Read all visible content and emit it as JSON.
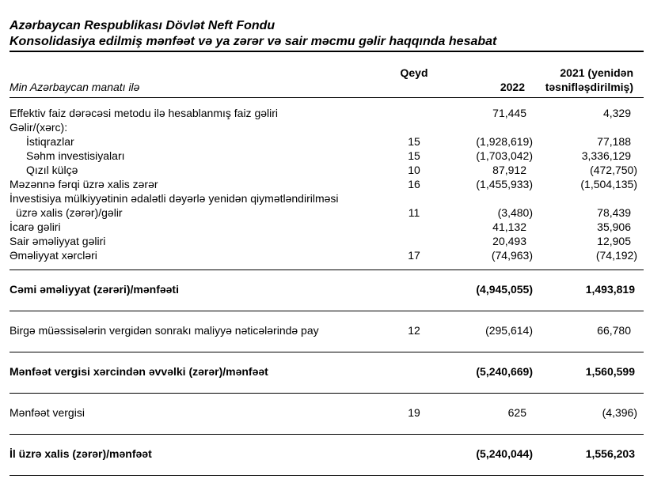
{
  "document": {
    "title_line1": "Azərbaycan Respublikası Dövlət Neft Fondu",
    "title_line2": "Konsolidasiya edilmiş mənfəət və ya zərər və sair məcmu gəlir haqqında hesabat"
  },
  "table": {
    "columns": {
      "unit_label": "Min Azərbaycan manatı ilə",
      "note": "Qeyd",
      "year_current": "2022",
      "year_prior_line1": "2021 (yenidən",
      "year_prior_line2": "təsnifləşdirilmiş)"
    },
    "rows": [
      {
        "label": "Effektiv faiz dərəcəsi metodu ilə hesablanmış faiz gəliri",
        "qeyd": "",
        "v2022": "71,445",
        "v2021": "4,329"
      },
      {
        "label": "Gəlir/(xərc):",
        "qeyd": "",
        "v2022": "",
        "v2021": ""
      },
      {
        "label": "İstiqrazlar",
        "indent": true,
        "qeyd": "15",
        "v2022": "(1,928,619)",
        "v2021": "77,188"
      },
      {
        "label": "Səhm investisiyaları",
        "indent": true,
        "qeyd": "15",
        "v2022": "(1,703,042)",
        "v2021": "3,336,129"
      },
      {
        "label": "Qızıl külçə",
        "indent": true,
        "qeyd": "10",
        "v2022": "87,912",
        "v2021": "(472,750)"
      },
      {
        "label": "Məzənnə fərqi üzrə xalis zərər",
        "qeyd": "16",
        "v2022": "(1,455,933)",
        "v2021": "(1,504,135)"
      },
      {
        "label": "İnvestisiya mülkiyyətinin ədalətli dəyərlə yenidən qiymətləndirilməsi",
        "label2": "üzrə xalis (zərər)/gəlir",
        "qeyd": "11",
        "v2022": "(3,480)",
        "v2021": "78,439"
      },
      {
        "label": "İcarə gəliri",
        "qeyd": "",
        "v2022": "41,132",
        "v2021": "35,906"
      },
      {
        "label": "Sair əməliyyat gəliri",
        "qeyd": "",
        "v2022": "20,493",
        "v2021": "12,905"
      },
      {
        "label": "Əməliyyat xərcləri",
        "qeyd": "17",
        "v2022": "(74,963)",
        "v2021": "(74,192)"
      },
      {
        "label": "Cəmi əməliyyat (zərəri)/mənfəəti",
        "bold": true,
        "section": true,
        "rule_above": true,
        "rule_below": true,
        "qeyd": "",
        "v2022": "(4,945,055)",
        "v2021": "1,493,819"
      },
      {
        "label": "Birgə müəssisələrin vergidən sonrakı maliyyə nəticələrində pay",
        "section": true,
        "rule_below": true,
        "qeyd": "12",
        "v2022": "(295,614)",
        "v2021": "66,780"
      },
      {
        "label": "Mənfəət vergisi xərcindən əvvəlki (zərər)/mənfəət",
        "bold": true,
        "section": true,
        "rule_below": true,
        "qeyd": "",
        "v2022": "(5,240,669)",
        "v2021": "1,560,599"
      },
      {
        "label": "Mənfəət vergisi",
        "section": true,
        "rule_below": true,
        "qeyd": "19",
        "v2022": "625",
        "v2021": "(4,396)"
      },
      {
        "label": "İl üzrə xalis (zərər)/mənfəət",
        "bold": true,
        "section": true,
        "rule_below": true,
        "qeyd": "",
        "v2022": "(5,240,044)",
        "v2021": "1,556,203"
      }
    ]
  }
}
